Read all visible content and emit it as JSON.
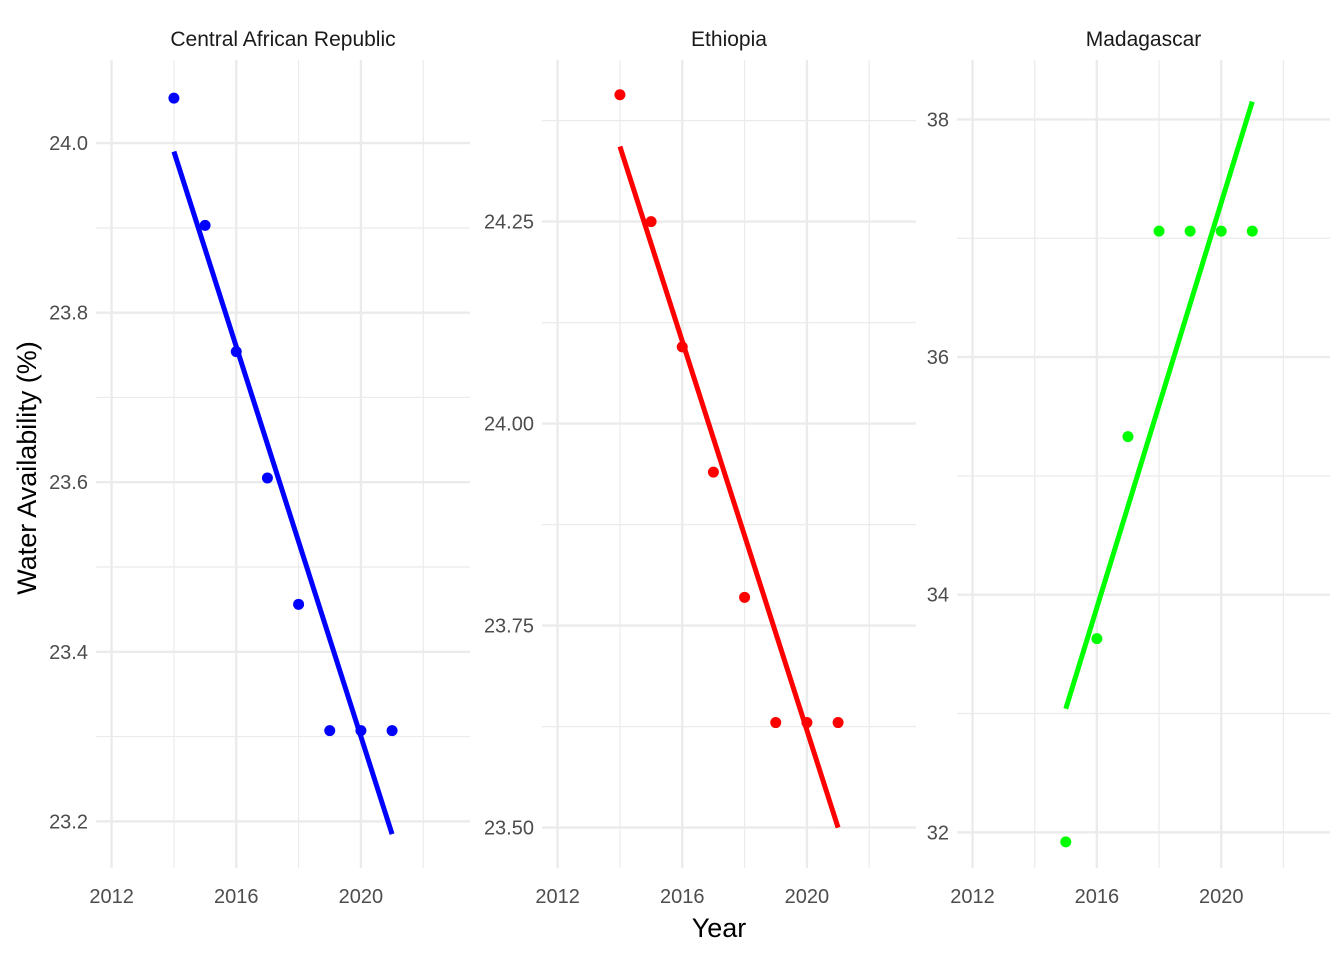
{
  "chart_data": {
    "type": "scatter",
    "xlabel": "Year",
    "ylabel": "Water Availability (%)",
    "grid": true,
    "legend": "none",
    "panels": [
      {
        "title": "Central African Republic",
        "color": "#0000ff",
        "x": [
          2014,
          2015,
          2016,
          2017,
          2018,
          2019,
          2020,
          2021
        ],
        "y": [
          24.053,
          23.903,
          23.754,
          23.605,
          23.456,
          23.307,
          23.307,
          23.307
        ],
        "trend": {
          "x": [
            2014,
            2021
          ],
          "y": [
            23.99,
            23.185
          ]
        },
        "xlim": [
          2011.5,
          2023.5
        ],
        "ylim": [
          23.145,
          24.098
        ],
        "x_ticks": [
          2012,
          2016,
          2020
        ],
        "x_tick_labels": [
          "2012",
          "2016",
          "2020"
        ],
        "y_ticks": [
          23.2,
          23.4,
          23.6,
          23.8,
          24.0
        ],
        "y_tick_labels": [
          "23.2",
          "23.4",
          "23.6",
          "23.8",
          "24.0"
        ]
      },
      {
        "title": "Ethiopia",
        "color": "#ff0000",
        "x": [
          2014,
          2015,
          2016,
          2017,
          2018,
          2019,
          2020,
          2021
        ],
        "y": [
          24.407,
          24.25,
          24.095,
          23.94,
          23.785,
          23.63,
          23.63,
          23.63
        ],
        "trend": {
          "x": [
            2014,
            2021
          ],
          "y": [
            24.343,
            23.5
          ]
        },
        "xlim": [
          2011.5,
          2023.5
        ],
        "ylim": [
          23.45,
          24.45
        ],
        "x_ticks": [
          2012,
          2016,
          2020
        ],
        "x_tick_labels": [
          "2012",
          "2016",
          "2020"
        ],
        "y_ticks": [
          23.5,
          23.75,
          24.0,
          24.25
        ],
        "y_tick_labels": [
          "23.50",
          "23.75",
          "24.00",
          "24.25"
        ]
      },
      {
        "title": "Madagascar",
        "color": "#00ff00",
        "x": [
          2015,
          2016,
          2017,
          2018,
          2019,
          2020,
          2021
        ],
        "y": [
          31.92,
          33.63,
          35.33,
          37.06,
          37.06,
          37.06,
          37.06
        ],
        "trend": {
          "x": [
            2015,
            2021
          ],
          "y": [
            33.04,
            38.15
          ]
        },
        "xlim": [
          2011.5,
          2023.5
        ],
        "ylim": [
          31.7,
          38.5
        ],
        "x_ticks": [
          2012,
          2016,
          2020
        ],
        "x_tick_labels": [
          "2012",
          "2016",
          "2020"
        ],
        "y_ticks": [
          32,
          34,
          36,
          38
        ],
        "y_tick_labels": [
          "32",
          "34",
          "36",
          "38"
        ]
      }
    ]
  }
}
